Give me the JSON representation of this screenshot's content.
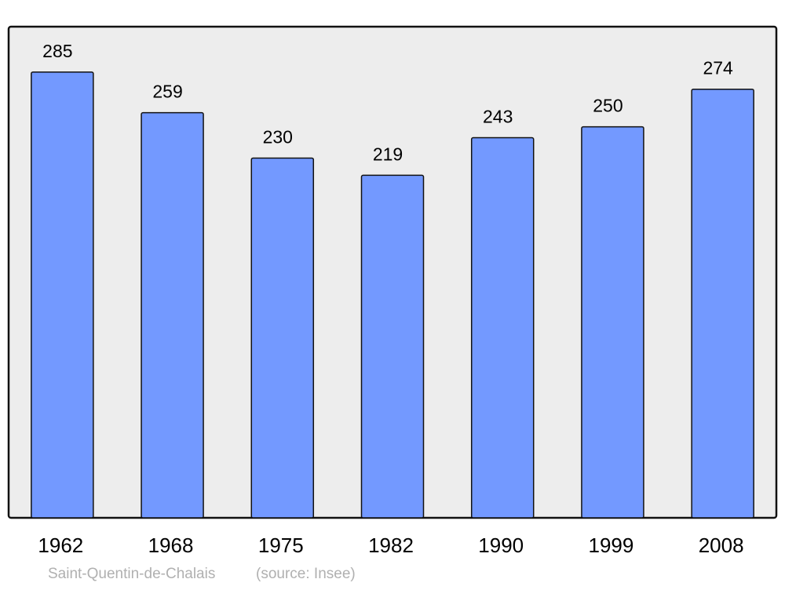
{
  "chart_data": {
    "type": "bar",
    "title": "",
    "xlabel": "",
    "ylabel": "",
    "categories": [
      "1962",
      "1968",
      "1975",
      "1982",
      "1990",
      "1999",
      "2008"
    ],
    "values": [
      285,
      259,
      230,
      219,
      243,
      250,
      274
    ],
    "data_labels": [
      "285",
      "259",
      "230",
      "219",
      "243",
      "250",
      "274"
    ],
    "ylim": [
      0,
      314
    ],
    "grid": false,
    "bar_color": "#7399ff",
    "background_color": "#ededed"
  },
  "footer": {
    "place": "Saint-Quentin-de-Chalais",
    "source": "(source: Insee)"
  }
}
